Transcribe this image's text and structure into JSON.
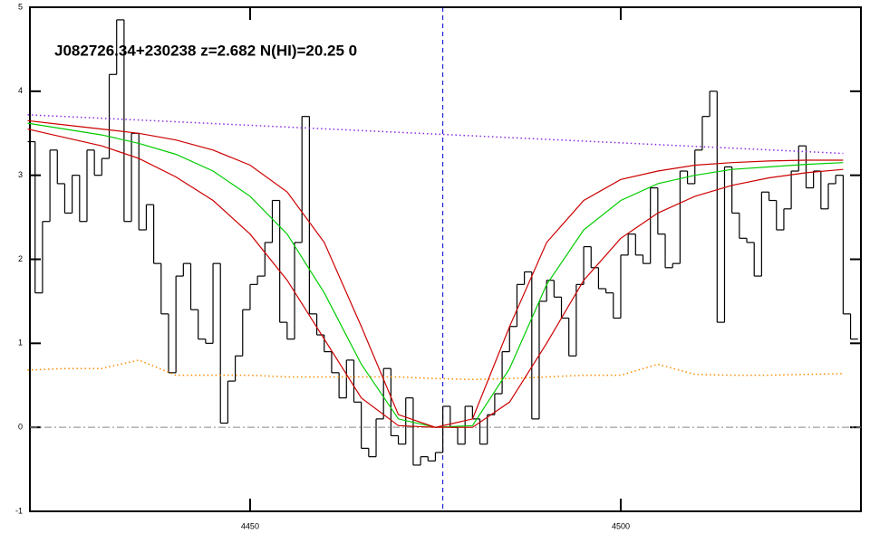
{
  "chart_data": {
    "type": "step",
    "title": "J082726.34+230238 z=2.682 N(HI)=20.25 0",
    "xlim": [
      4420.3,
      4532.4
    ],
    "ylim": [
      -1,
      5
    ],
    "xticks": [
      4450,
      4500
    ],
    "yticks": [
      -1,
      0,
      1,
      2,
      3,
      4,
      5
    ],
    "vline": 4476,
    "hline": 0,
    "series": [
      {
        "style": "step",
        "color": "#000000",
        "x": [
          4420.5,
          4421.5,
          4422.5,
          4423.5,
          4424.5,
          4425.5,
          4426.5,
          4427.5,
          4428.5,
          4429.5,
          4430.5,
          4431.5,
          4432.5,
          4433.5,
          4434.5,
          4435.5,
          4436.5,
          4437.5,
          4438.5,
          4439.5,
          4440.5,
          4441.5,
          4442.5,
          4443.5,
          4444.5,
          4445.5,
          4446.5,
          4447.5,
          4448.5,
          4449.5,
          4450.5,
          4451.5,
          4452.5,
          4453.5,
          4454.5,
          4455.5,
          4456.5,
          4457.5,
          4458.5,
          4459.5,
          4460.5,
          4461.5,
          4462.5,
          4463.5,
          4464.5,
          4465.5,
          4466.5,
          4467.5,
          4468.5,
          4469.5,
          4470.5,
          4471.5,
          4472.5,
          4473.5,
          4474.5,
          4475.5,
          4476.5,
          4477.5,
          4478.5,
          4479.5,
          4480.5,
          4481.5,
          4482.5,
          4483.5,
          4484.5,
          4485.5,
          4486.5,
          4487.5,
          4488.5,
          4489.5,
          4490.5,
          4491.5,
          4492.5,
          4493.5,
          4494.5,
          4495.5,
          4496.5,
          4497.5,
          4498.5,
          4499.5,
          4500.5,
          4501.5,
          4502.5,
          4503.5,
          4504.5,
          4505.5,
          4506.5,
          4507.5,
          4508.5,
          4509.5,
          4510.5,
          4511.5,
          4512.5,
          4513.5,
          4514.5,
          4515.5,
          4516.5,
          4517.5,
          4518.5,
          4519.5,
          4520.5,
          4521.5,
          4522.5,
          4523.5,
          4524.5,
          4525.5,
          4526.5,
          4527.5,
          4528.5,
          4529.5,
          4530.5,
          4531.5
        ],
        "values": [
          3.4,
          1.6,
          2.45,
          3.3,
          2.9,
          2.55,
          3.0,
          2.45,
          3.3,
          3.0,
          3.2,
          4.2,
          4.85,
          2.45,
          3.5,
          2.35,
          2.65,
          1.95,
          1.35,
          0.65,
          1.8,
          1.95,
          1.4,
          1.05,
          1.0,
          1.95,
          0.05,
          0.55,
          0.85,
          1.4,
          1.7,
          1.8,
          2.2,
          2.7,
          1.25,
          1.05,
          2.2,
          3.7,
          1.35,
          1.1,
          0.9,
          0.65,
          0.35,
          0.8,
          0.3,
          -0.25,
          -0.35,
          0.1,
          0.7,
          -0.1,
          -0.2,
          0.35,
          -0.45,
          -0.35,
          -0.4,
          -0.3,
          0.25,
          0.0,
          -0.2,
          0.25,
          0.1,
          -0.2,
          0.15,
          0.4,
          0.9,
          1.2,
          1.7,
          1.85,
          0.1,
          1.5,
          1.75,
          1.55,
          1.3,
          0.85,
          1.7,
          2.15,
          1.9,
          1.65,
          1.6,
          1.3,
          2.05,
          2.3,
          2.05,
          1.95,
          2.85,
          2.3,
          1.9,
          1.95,
          3.05,
          2.9,
          3.3,
          3.7,
          4.0,
          1.25,
          3.1,
          2.55,
          2.25,
          2.2,
          1.8,
          2.8,
          2.7,
          2.35,
          2.6,
          3.05,
          3.35,
          2.85,
          3.05,
          2.6,
          2.9,
          3.0,
          1.35,
          1.05
        ]
      },
      {
        "style": "dotted",
        "color": "#ff8c00",
        "x": [
          4420,
          4425,
          4430,
          4435,
          4440,
          4445,
          4450,
          4455,
          4460,
          4465,
          4470,
          4475,
          4480,
          4485,
          4490,
          4495,
          4500,
          4505,
          4510,
          4515,
          4520,
          4525,
          4530
        ],
        "values": [
          0.68,
          0.7,
          0.7,
          0.8,
          0.62,
          0.62,
          0.62,
          0.6,
          0.6,
          0.6,
          0.6,
          0.58,
          0.57,
          0.58,
          0.6,
          0.62,
          0.62,
          0.75,
          0.63,
          0.62,
          0.62,
          0.63,
          0.64
        ]
      },
      {
        "style": "dotted",
        "color": "#8a2be2",
        "x": [
          4420,
          4530
        ],
        "values": [
          3.72,
          3.26
        ]
      },
      {
        "style": "line",
        "color": "#00cc00",
        "x": [
          4420,
          4425,
          4430,
          4435,
          4440,
          4445,
          4450,
          4455,
          4460,
          4465,
          4470,
          4475,
          4480,
          4485,
          4490,
          4495,
          4500,
          4505,
          4510,
          4515,
          4520,
          4525,
          4530
        ],
        "values": [
          3.62,
          3.55,
          3.48,
          3.38,
          3.25,
          3.05,
          2.75,
          2.3,
          1.6,
          0.75,
          0.1,
          0,
          0.02,
          0.7,
          1.7,
          2.35,
          2.7,
          2.9,
          3.0,
          3.07,
          3.1,
          3.13,
          3.15
        ]
      },
      {
        "style": "line",
        "color": "#cc0000",
        "x": [
          4420,
          4425,
          4430,
          4435,
          4440,
          4445,
          4450,
          4455,
          4460,
          4465,
          4470,
          4475,
          4480,
          4485,
          4490,
          4495,
          4500,
          4505,
          4510,
          4515,
          4520,
          4525,
          4530
        ],
        "values": [
          3.65,
          3.6,
          3.55,
          3.5,
          3.42,
          3.3,
          3.12,
          2.8,
          2.2,
          1.2,
          0.15,
          0,
          0.1,
          1.2,
          2.2,
          2.7,
          2.95,
          3.05,
          3.12,
          3.15,
          3.17,
          3.18,
          3.18
        ]
      },
      {
        "style": "line",
        "color": "#cc0000",
        "x": [
          4420,
          4425,
          4430,
          4435,
          4440,
          4445,
          4450,
          4455,
          4460,
          4465,
          4470,
          4475,
          4480,
          4485,
          4490,
          4495,
          4500,
          4505,
          4510,
          4515,
          4520,
          4525,
          4530
        ],
        "values": [
          3.55,
          3.45,
          3.35,
          3.2,
          2.98,
          2.7,
          2.3,
          1.75,
          1.05,
          0.35,
          0.02,
          0,
          0,
          0.3,
          1.0,
          1.75,
          2.25,
          2.55,
          2.75,
          2.88,
          2.97,
          3.03,
          3.07
        ]
      }
    ]
  }
}
